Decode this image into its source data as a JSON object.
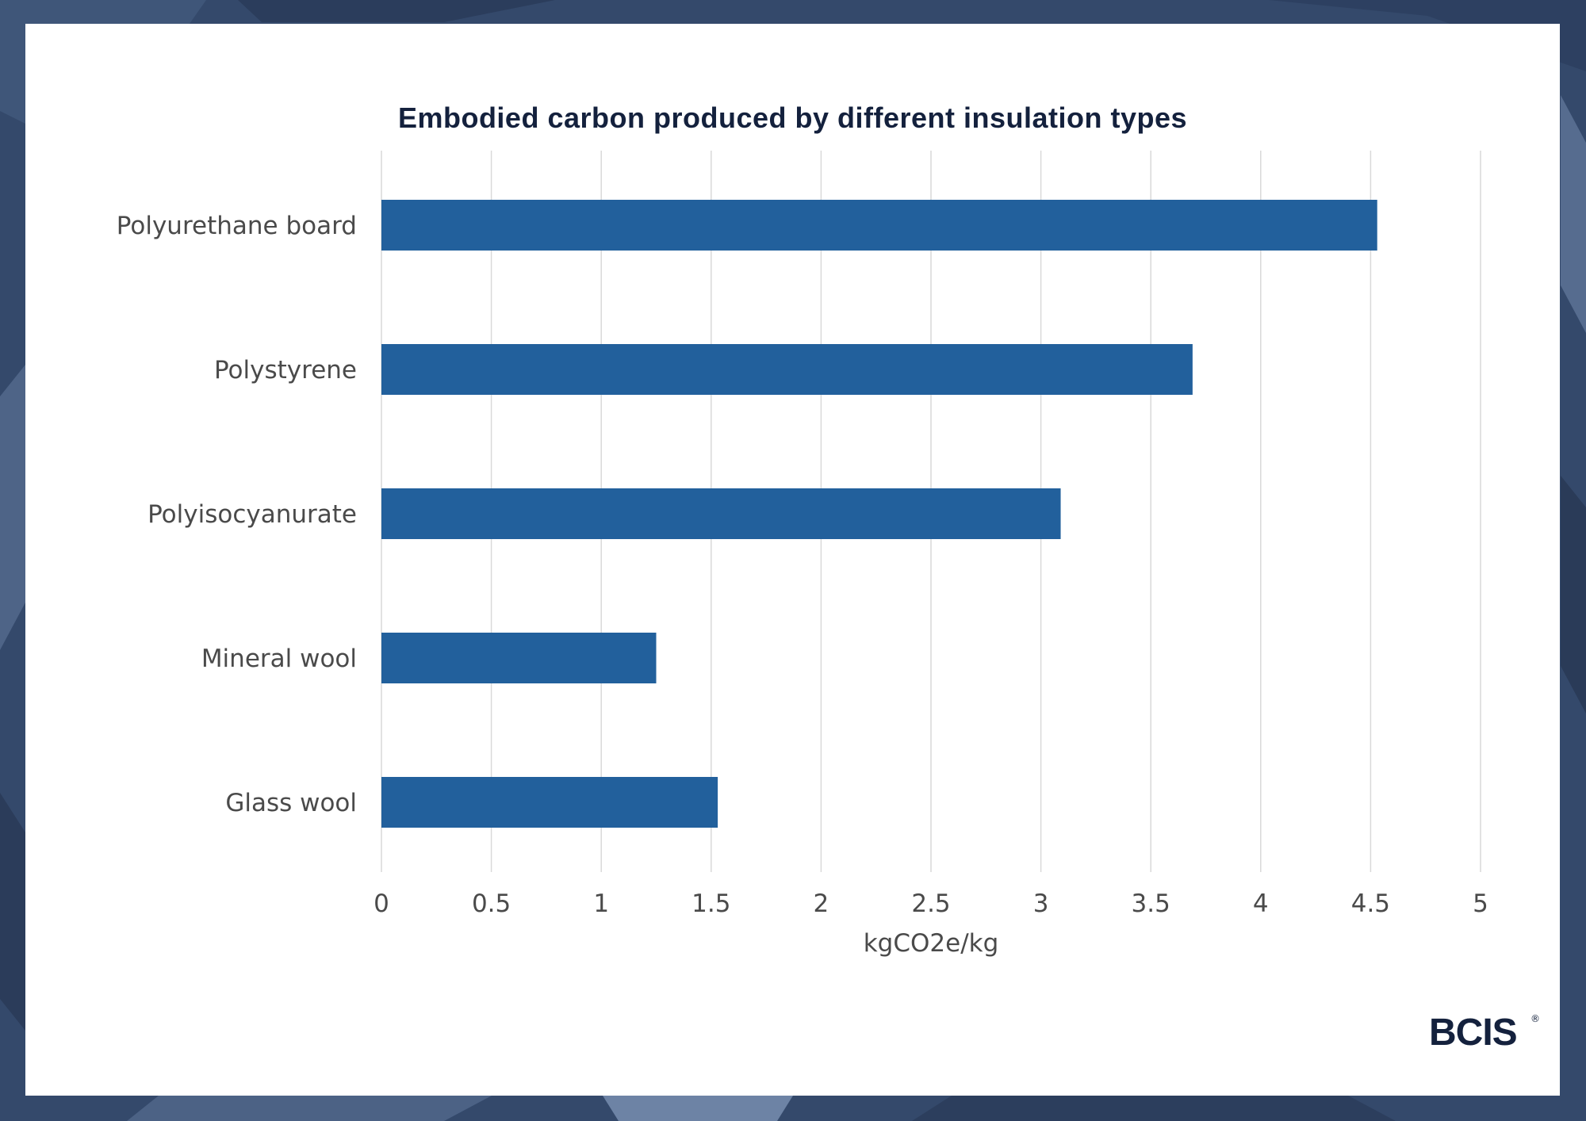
{
  "colors": {
    "bar": "#22609c",
    "title": "#14213d",
    "backdrop": "#34496b"
  },
  "brand": {
    "logo_text": "BCIS",
    "registered_mark": "®"
  },
  "chart_data": {
    "type": "bar",
    "orientation": "horizontal",
    "title": "Embodied carbon produced by different insulation types",
    "xlabel": "kgCO2e/kg",
    "ylabel": "",
    "categories": [
      "Polyurethane board",
      "Polystyrene",
      "Polyisocyanurate",
      "Mineral wool",
      "Glass wool"
    ],
    "values": [
      4.53,
      3.69,
      3.09,
      1.25,
      1.53
    ],
    "xlim": [
      0,
      5
    ],
    "ticks": [
      "0",
      "0.5",
      "1",
      "1.5",
      "2",
      "2.5",
      "3",
      "3.5",
      "4",
      "4.5",
      "5"
    ],
    "grid": "vertical",
    "legend": "none"
  }
}
